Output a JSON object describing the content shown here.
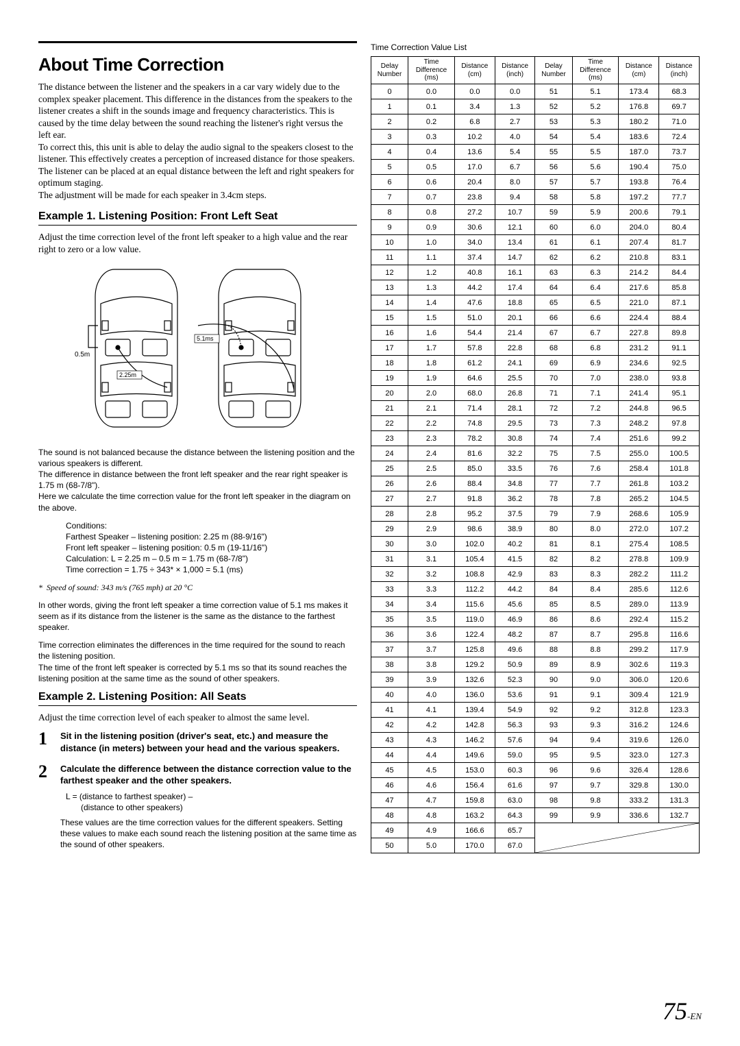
{
  "title": "About Time Correction",
  "intro": "The distance between the listener and the speakers in a car vary widely due to the complex speaker placement. This difference in the distances from the speakers to the listener creates a shift in the sounds image and frequency characteristics. This is caused by the time delay between the sound reaching the listener's right versus the left ear.\nTo correct this, this unit is able to delay the audio signal to the speakers closest to the listener. This effectively creates a perception of increased distance for those speakers. The listener can be placed at an equal distance between the left and right speakers for optimum staging.\nThe adjustment will be made for each speaker in 3.4cm steps.",
  "example1_title": "Example 1. Listening Position: Front Left Seat",
  "example1_sub": "Adjust the time correction level of the front left speaker to a high value and the rear right to zero or a low value.",
  "diagram": {
    "label_0_5m": "0.5m",
    "label_2_25m": "2.25m",
    "label_5_1ms": "5.1ms"
  },
  "desc1": "The sound is not balanced because the distance between the listening position and the various speakers is different.\nThe difference in distance between the front left speaker and the rear right speaker is 1.75 m (68-7/8\").\nHere we calculate the time correction value for the front left speaker in the diagram on the above.",
  "conditions_label": "Conditions:",
  "conditions": "Farthest Speaker – listening position: 2.25 m (88-9/16\")\nFront left speaker – listening position: 0.5 m (19-11/16\")\nCalculation: L = 2.25 m – 0.5 m = 1.75 m (68-7/8\")\nTime correction = 1.75 ÷ 343* × 1,000 = 5.1 (ms)",
  "footnote_star": "*",
  "footnote": "Speed of sound: 343 m/s (765 mph) at 20 °C",
  "desc2": "In other words, giving the front left speaker a time correction value of 5.1 ms makes it seem as if its distance from the listener is the same as the distance to the farthest speaker.",
  "desc3": "Time correction eliminates the differences in the time required for the sound to reach the listening position.\nThe time of the front left speaker is corrected by 5.1 ms so that its sound reaches the listening position at the same time as the sound of other speakers.",
  "example2_title": "Example 2. Listening Position: All Seats",
  "example2_sub": "Adjust the time correction level of each speaker to almost the same level.",
  "steps": [
    {
      "num": "1",
      "bold": "Sit in the listening position (driver's seat, etc.) and measure the distance (in meters) between your head and the various speakers."
    },
    {
      "num": "2",
      "bold": "Calculate the difference between the distance correction value to the farthest speaker and the other speakers.",
      "detail1a": "L = (distance to farthest speaker) –",
      "detail1b": "(distance to other speakers)",
      "detail2": "These values are the time correction values for the different speakers. Setting these values to make each sound reach the listening position at the same time as the sound of other speakers."
    }
  ],
  "table_title": "Time Correction Value List",
  "table_headers": {
    "delay_number": "Delay\nNumber",
    "time_diff": "Time\nDifference\n(ms)",
    "dist_cm": "Distance\n(cm)",
    "dist_inch": "Distance\n(inch)"
  },
  "table_data_left": [
    [
      "0",
      "0.0",
      "0.0",
      "0.0"
    ],
    [
      "1",
      "0.1",
      "3.4",
      "1.3"
    ],
    [
      "2",
      "0.2",
      "6.8",
      "2.7"
    ],
    [
      "3",
      "0.3",
      "10.2",
      "4.0"
    ],
    [
      "4",
      "0.4",
      "13.6",
      "5.4"
    ],
    [
      "5",
      "0.5",
      "17.0",
      "6.7"
    ],
    [
      "6",
      "0.6",
      "20.4",
      "8.0"
    ],
    [
      "7",
      "0.7",
      "23.8",
      "9.4"
    ],
    [
      "8",
      "0.8",
      "27.2",
      "10.7"
    ],
    [
      "9",
      "0.9",
      "30.6",
      "12.1"
    ],
    [
      "10",
      "1.0",
      "34.0",
      "13.4"
    ],
    [
      "11",
      "1.1",
      "37.4",
      "14.7"
    ],
    [
      "12",
      "1.2",
      "40.8",
      "16.1"
    ],
    [
      "13",
      "1.3",
      "44.2",
      "17.4"
    ],
    [
      "14",
      "1.4",
      "47.6",
      "18.8"
    ],
    [
      "15",
      "1.5",
      "51.0",
      "20.1"
    ],
    [
      "16",
      "1.6",
      "54.4",
      "21.4"
    ],
    [
      "17",
      "1.7",
      "57.8",
      "22.8"
    ],
    [
      "18",
      "1.8",
      "61.2",
      "24.1"
    ],
    [
      "19",
      "1.9",
      "64.6",
      "25.5"
    ],
    [
      "20",
      "2.0",
      "68.0",
      "26.8"
    ],
    [
      "21",
      "2.1",
      "71.4",
      "28.1"
    ],
    [
      "22",
      "2.2",
      "74.8",
      "29.5"
    ],
    [
      "23",
      "2.3",
      "78.2",
      "30.8"
    ],
    [
      "24",
      "2.4",
      "81.6",
      "32.2"
    ],
    [
      "25",
      "2.5",
      "85.0",
      "33.5"
    ],
    [
      "26",
      "2.6",
      "88.4",
      "34.8"
    ],
    [
      "27",
      "2.7",
      "91.8",
      "36.2"
    ],
    [
      "28",
      "2.8",
      "95.2",
      "37.5"
    ],
    [
      "29",
      "2.9",
      "98.6",
      "38.9"
    ],
    [
      "30",
      "3.0",
      "102.0",
      "40.2"
    ],
    [
      "31",
      "3.1",
      "105.4",
      "41.5"
    ],
    [
      "32",
      "3.2",
      "108.8",
      "42.9"
    ],
    [
      "33",
      "3.3",
      "112.2",
      "44.2"
    ],
    [
      "34",
      "3.4",
      "115.6",
      "45.6"
    ],
    [
      "35",
      "3.5",
      "119.0",
      "46.9"
    ],
    [
      "36",
      "3.6",
      "122.4",
      "48.2"
    ],
    [
      "37",
      "3.7",
      "125.8",
      "49.6"
    ],
    [
      "38",
      "3.8",
      "129.2",
      "50.9"
    ],
    [
      "39",
      "3.9",
      "132.6",
      "52.3"
    ],
    [
      "40",
      "4.0",
      "136.0",
      "53.6"
    ],
    [
      "41",
      "4.1",
      "139.4",
      "54.9"
    ],
    [
      "42",
      "4.2",
      "142.8",
      "56.3"
    ],
    [
      "43",
      "4.3",
      "146.2",
      "57.6"
    ],
    [
      "44",
      "4.4",
      "149.6",
      "59.0"
    ],
    [
      "45",
      "4.5",
      "153.0",
      "60.3"
    ],
    [
      "46",
      "4.6",
      "156.4",
      "61.6"
    ],
    [
      "47",
      "4.7",
      "159.8",
      "63.0"
    ],
    [
      "48",
      "4.8",
      "163.2",
      "64.3"
    ],
    [
      "49",
      "4.9",
      "166.6",
      "65.7"
    ],
    [
      "50",
      "5.0",
      "170.0",
      "67.0"
    ]
  ],
  "table_data_right": [
    [
      "51",
      "5.1",
      "173.4",
      "68.3"
    ],
    [
      "52",
      "5.2",
      "176.8",
      "69.7"
    ],
    [
      "53",
      "5.3",
      "180.2",
      "71.0"
    ],
    [
      "54",
      "5.4",
      "183.6",
      "72.4"
    ],
    [
      "55",
      "5.5",
      "187.0",
      "73.7"
    ],
    [
      "56",
      "5.6",
      "190.4",
      "75.0"
    ],
    [
      "57",
      "5.7",
      "193.8",
      "76.4"
    ],
    [
      "58",
      "5.8",
      "197.2",
      "77.7"
    ],
    [
      "59",
      "5.9",
      "200.6",
      "79.1"
    ],
    [
      "60",
      "6.0",
      "204.0",
      "80.4"
    ],
    [
      "61",
      "6.1",
      "207.4",
      "81.7"
    ],
    [
      "62",
      "6.2",
      "210.8",
      "83.1"
    ],
    [
      "63",
      "6.3",
      "214.2",
      "84.4"
    ],
    [
      "64",
      "6.4",
      "217.6",
      "85.8"
    ],
    [
      "65",
      "6.5",
      "221.0",
      "87.1"
    ],
    [
      "66",
      "6.6",
      "224.4",
      "88.4"
    ],
    [
      "67",
      "6.7",
      "227.8",
      "89.8"
    ],
    [
      "68",
      "6.8",
      "231.2",
      "91.1"
    ],
    [
      "69",
      "6.9",
      "234.6",
      "92.5"
    ],
    [
      "70",
      "7.0",
      "238.0",
      "93.8"
    ],
    [
      "71",
      "7.1",
      "241.4",
      "95.1"
    ],
    [
      "72",
      "7.2",
      "244.8",
      "96.5"
    ],
    [
      "73",
      "7.3",
      "248.2",
      "97.8"
    ],
    [
      "74",
      "7.4",
      "251.6",
      "99.2"
    ],
    [
      "75",
      "7.5",
      "255.0",
      "100.5"
    ],
    [
      "76",
      "7.6",
      "258.4",
      "101.8"
    ],
    [
      "77",
      "7.7",
      "261.8",
      "103.2"
    ],
    [
      "78",
      "7.8",
      "265.2",
      "104.5"
    ],
    [
      "79",
      "7.9",
      "268.6",
      "105.9"
    ],
    [
      "80",
      "8.0",
      "272.0",
      "107.2"
    ],
    [
      "81",
      "8.1",
      "275.4",
      "108.5"
    ],
    [
      "82",
      "8.2",
      "278.8",
      "109.9"
    ],
    [
      "83",
      "8.3",
      "282.2",
      "111.2"
    ],
    [
      "84",
      "8.4",
      "285.6",
      "112.6"
    ],
    [
      "85",
      "8.5",
      "289.0",
      "113.9"
    ],
    [
      "86",
      "8.6",
      "292.4",
      "115.2"
    ],
    [
      "87",
      "8.7",
      "295.8",
      "116.6"
    ],
    [
      "88",
      "8.8",
      "299.2",
      "117.9"
    ],
    [
      "89",
      "8.9",
      "302.6",
      "119.3"
    ],
    [
      "90",
      "9.0",
      "306.0",
      "120.6"
    ],
    [
      "91",
      "9.1",
      "309.4",
      "121.9"
    ],
    [
      "92",
      "9.2",
      "312.8",
      "123.3"
    ],
    [
      "93",
      "9.3",
      "316.2",
      "124.6"
    ],
    [
      "94",
      "9.4",
      "319.6",
      "126.0"
    ],
    [
      "95",
      "9.5",
      "323.0",
      "127.3"
    ],
    [
      "96",
      "9.6",
      "326.4",
      "128.6"
    ],
    [
      "97",
      "9.7",
      "329.8",
      "130.0"
    ],
    [
      "98",
      "9.8",
      "333.2",
      "131.3"
    ],
    [
      "99",
      "9.9",
      "336.6",
      "132.7"
    ]
  ],
  "page_number": "75",
  "page_suffix": "-EN"
}
